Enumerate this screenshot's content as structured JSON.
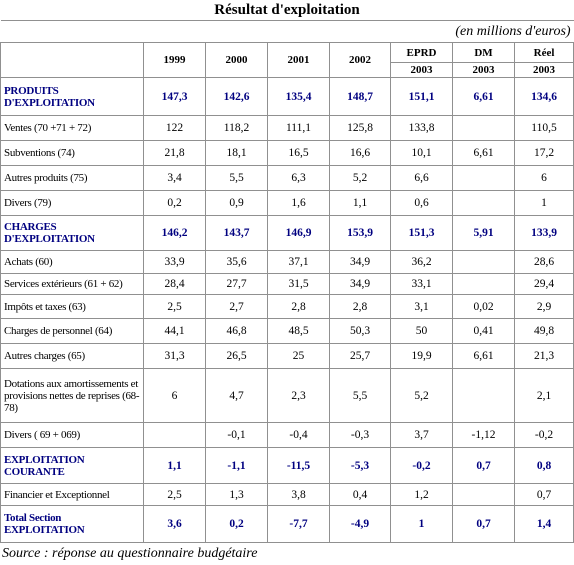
{
  "header": {
    "title": "Résultat d'exploitation",
    "units": "(en millions d'euros)"
  },
  "table": {
    "columns": [
      [
        "1999"
      ],
      [
        "2000"
      ],
      [
        "2001"
      ],
      [
        "2002"
      ],
      [
        "EPRD",
        "2003"
      ],
      [
        "DM",
        "2003"
      ],
      [
        "Réel",
        "2003"
      ]
    ],
    "rows": [
      {
        "label": "PRODUITS D'EXPLOITATION",
        "bold": true,
        "values": [
          "147,3",
          "142,6",
          "135,4",
          "148,7",
          "151,1",
          "6,61",
          "134,6"
        ]
      },
      {
        "label": "Ventes (70 +71 + 72)",
        "values": [
          "122",
          "118,2",
          "111,1",
          "125,8",
          "133,8",
          null,
          "110,5"
        ]
      },
      {
        "label": "Subventions (74)",
        "values": [
          "21,8",
          "18,1",
          "16,5",
          "16,6",
          "10,1",
          "6,61",
          "17,2"
        ]
      },
      {
        "label": "Autres produits (75)",
        "values": [
          "3,4",
          "5,5",
          "6,3",
          "5,2",
          "6,6",
          null,
          "6"
        ]
      },
      {
        "label": "Divers (79)",
        "values": [
          "0,2",
          "0,9",
          "1,6",
          "1,1",
          "0,6",
          null,
          "1"
        ]
      },
      {
        "label": "CHARGES D'EXPLOITATION",
        "bold": true,
        "values": [
          "146,2",
          "143,7",
          "146,9",
          "153,9",
          "151,3",
          "5,91",
          "133,9"
        ]
      },
      {
        "label": "Achats (60)",
        "values": [
          "33,9",
          "35,6",
          "37,1",
          "34,9",
          "36,2",
          null,
          "28,6"
        ]
      },
      {
        "label": "Services extérieurs (61 + 62)",
        "values": [
          "28,4",
          "27,7",
          "31,5",
          "34,9",
          "33,1",
          null,
          "29,4"
        ]
      },
      {
        "label": "Impôts et taxes (63)",
        "values": [
          "2,5",
          "2,7",
          "2,8",
          "2,8",
          "3,1",
          "0,02",
          "2,9"
        ]
      },
      {
        "label": "Charges de personnel (64)",
        "values": [
          "44,1",
          "46,8",
          "48,5",
          "50,3",
          "50",
          "0,41",
          "49,8"
        ]
      },
      {
        "label": "Autres charges (65)",
        "values": [
          "31,3",
          "26,5",
          "25",
          "25,7",
          "19,9",
          "6,61",
          "21,3"
        ]
      },
      {
        "label": "Dotations aux amortissements et provisions nettes de reprises (68-78)",
        "values": [
          "6",
          "4,7",
          "2,3",
          "5,5",
          "5,2",
          null,
          "2,1"
        ]
      },
      {
        "label": "Divers ( 69 + 069)",
        "values": [
          null,
          "-0,1",
          "-0,4",
          "-0,3",
          "3,7",
          "-1,12",
          "-0,2"
        ]
      },
      {
        "label": "EXPLOITATION COURANTE",
        "bold": true,
        "values": [
          "1,1",
          "-1,1",
          "-11,5",
          "-5,3",
          "-0,2",
          "0,7",
          "0,8"
        ]
      },
      {
        "label": "Financier et Exceptionnel",
        "values": [
          "2,5",
          "1,3",
          "3,8",
          "0,4",
          "1,2",
          null,
          "0,7"
        ]
      },
      {
        "label": "Total Section EXPLOITATION",
        "bold": true,
        "values": [
          "3,6",
          "0,2",
          "-7,7",
          "-4,9",
          "1",
          "0,7",
          "1,4"
        ]
      }
    ]
  },
  "footer": {
    "source": "Source : réponse au questionnaire budgétaire"
  }
}
